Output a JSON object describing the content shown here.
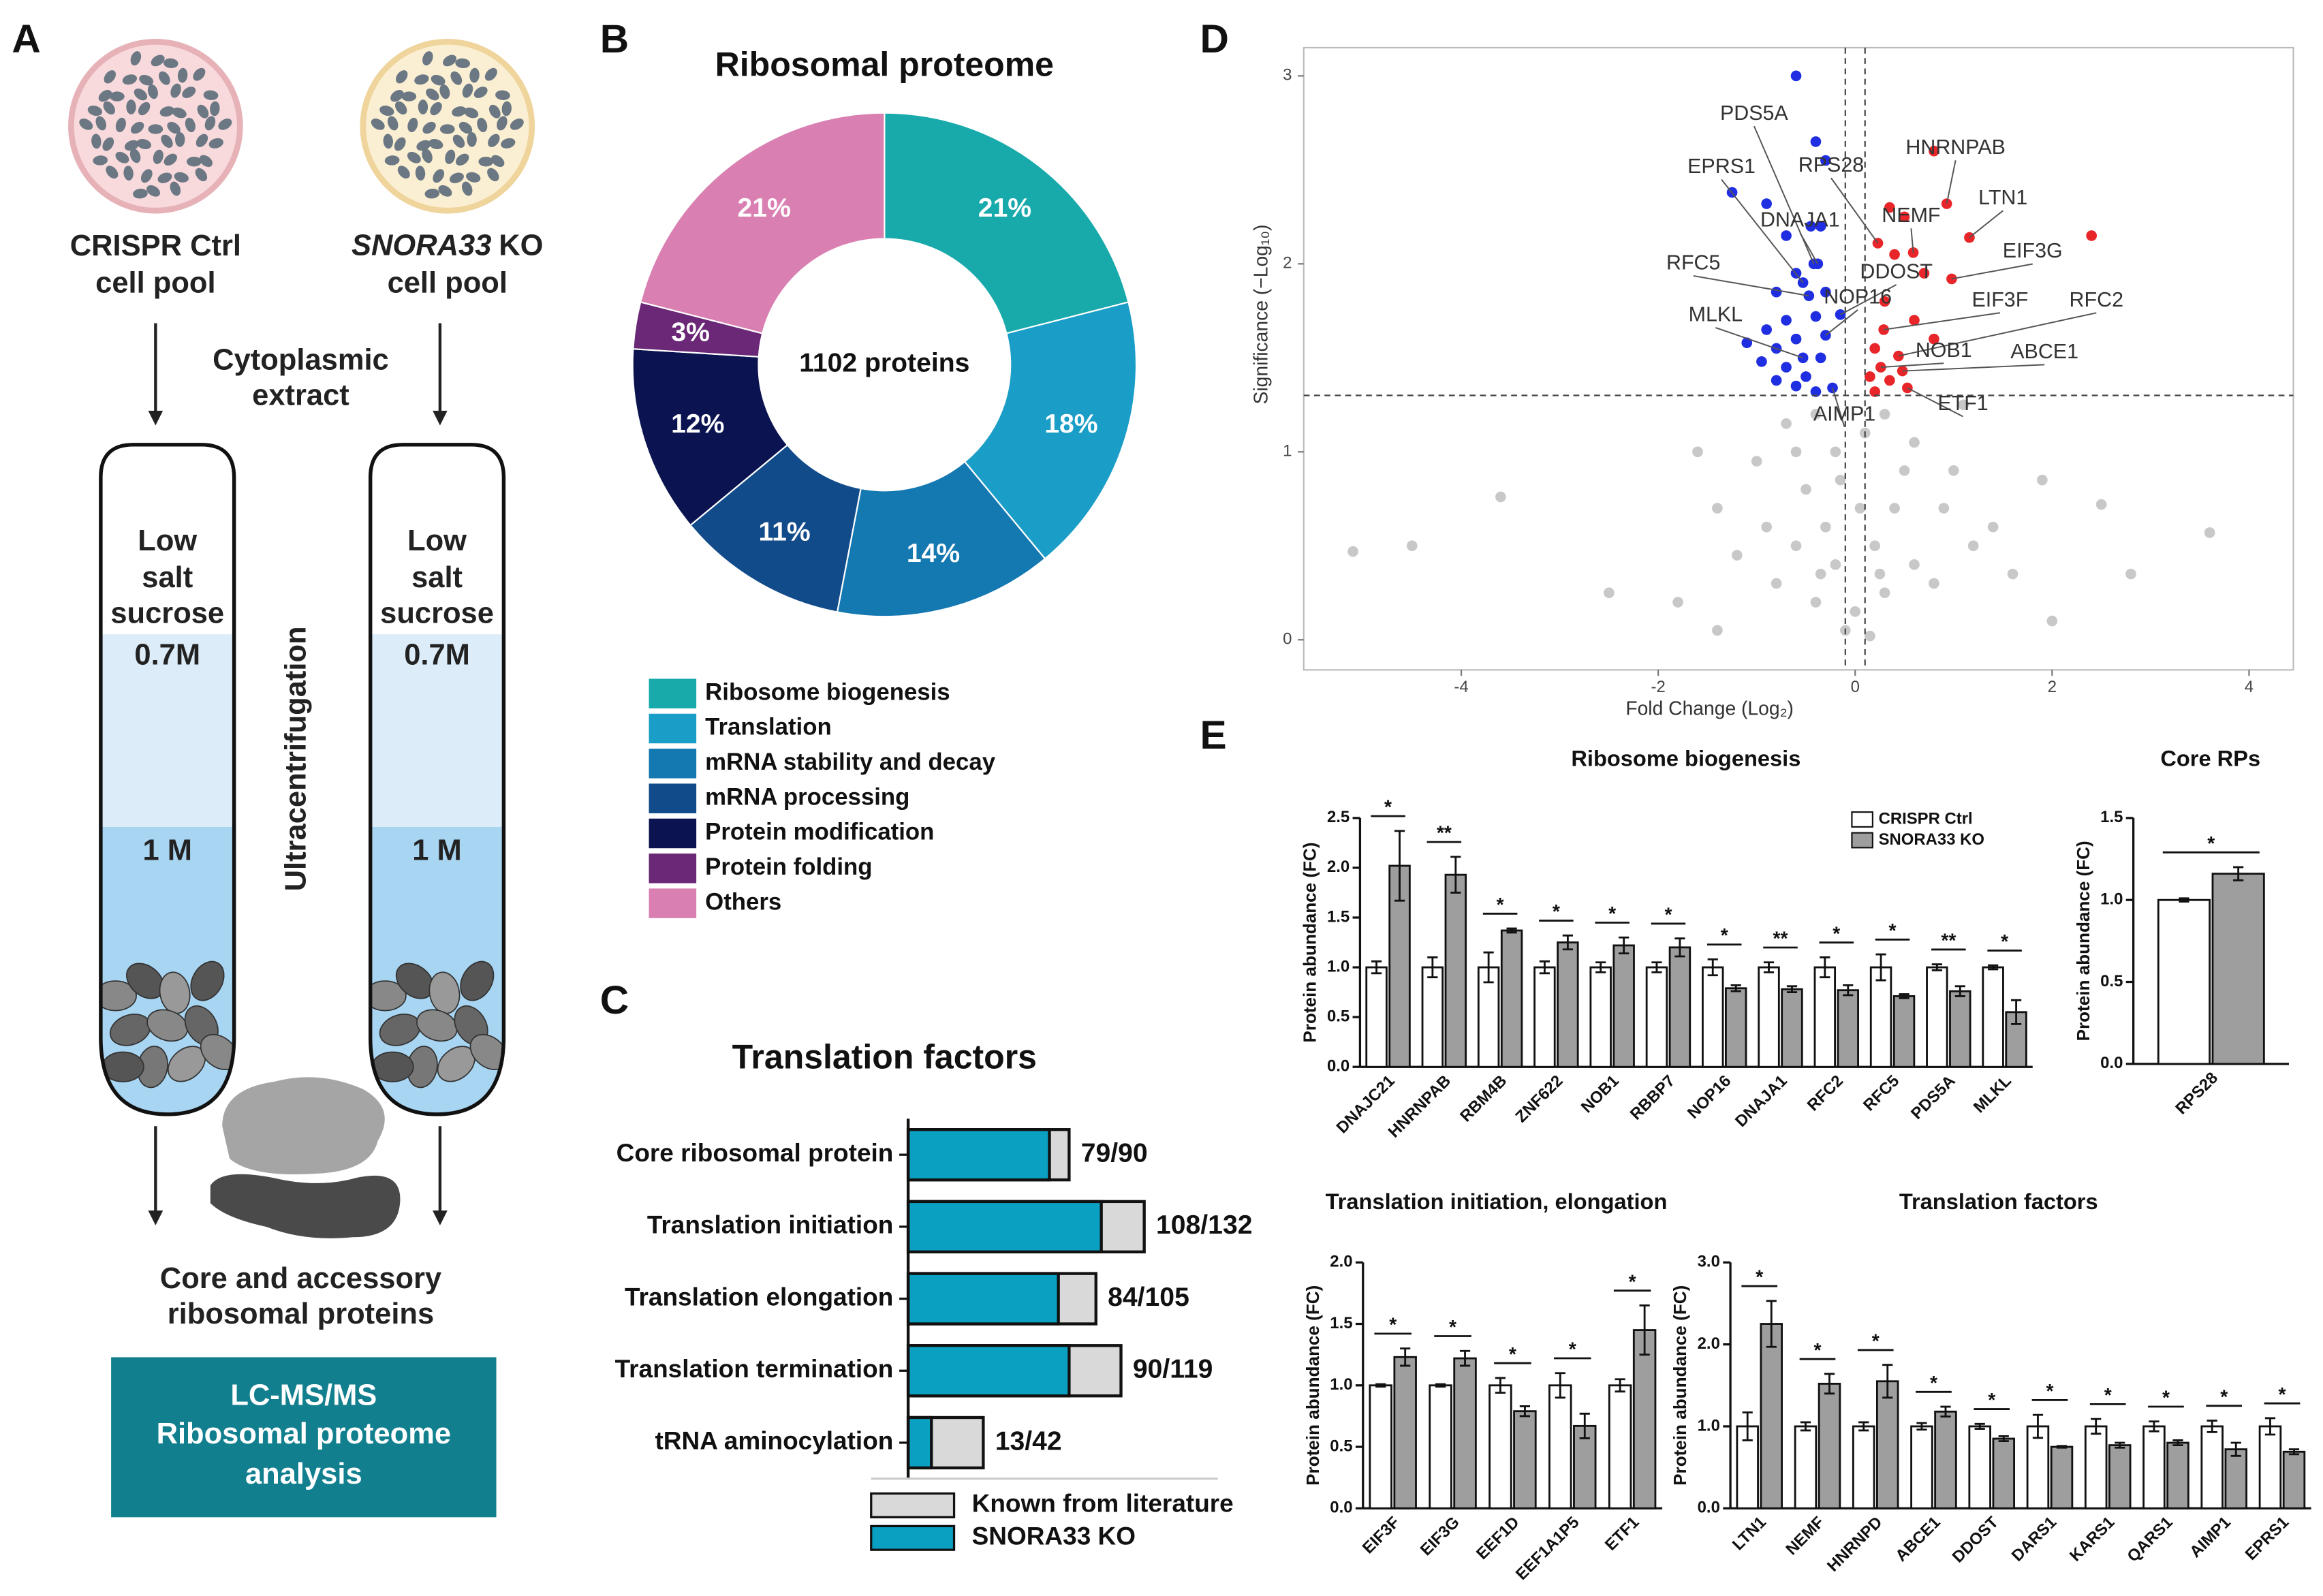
{
  "panels": [
    "A",
    "B",
    "C",
    "D",
    "E"
  ],
  "diagram": {
    "left_dish": [
      "CRISPR Ctrl",
      "cell pool"
    ],
    "right_dish": {
      "gene": "SNORA33",
      "suffix": "KO",
      "line2": "cell pool"
    },
    "step": [
      "Cytoplasmic",
      "extract"
    ],
    "tube_layers": [
      "Low",
      "salt",
      "sucrose"
    ],
    "fraction_1": "0.7M",
    "fraction_2": "1 M",
    "centrifuge": "Ultracentrifugation",
    "result": [
      "Core and accessory",
      "ribosomal proteins"
    ],
    "analysis": [
      "LC-MS/MS",
      "Ribosomal proteome",
      "analysis"
    ]
  },
  "chart_data": [
    {
      "type": "pie",
      "title": "Ribosomal proteome",
      "center_label": "1102 proteins",
      "categories": [
        "Ribosome biogenesis",
        "Translation",
        "mRNA stability and decay",
        "mRNA processing",
        "Protein modification",
        "Protein folding",
        "Others"
      ],
      "values": [
        21,
        18,
        14,
        11,
        12,
        3,
        21
      ],
      "value_labels": [
        "21%",
        "18%",
        "14%",
        "11%",
        "12%",
        "3%",
        "21%"
      ],
      "colors": [
        "#18a9ab",
        "#1a9dc6",
        "#1478b1",
        "#114b8a",
        "#0b1450",
        "#6a2876",
        "#d97fb2"
      ]
    },
    {
      "type": "bar",
      "orientation": "horizontal",
      "title": "Translation factors",
      "categories": [
        "Core ribosomal protein",
        "Translation initiation",
        "Translation elongation",
        "Translation termination",
        "tRNA aminocylation"
      ],
      "series": [
        {
          "name": "Known from literature",
          "color": "#d9d9d9",
          "values": [
            90,
            132,
            105,
            119,
            42
          ]
        },
        {
          "name": "SNORA33 KO",
          "color": "#0aa0c1",
          "values": [
            79,
            108,
            84,
            90,
            13
          ]
        }
      ],
      "value_labels": [
        "79/90",
        "108/132",
        "84/105",
        "90/119",
        "13/42"
      ],
      "xlim": [
        0,
        140
      ]
    },
    {
      "type": "scatter",
      "xlabel": "Fold Change (Log₂)",
      "ylabel": "Significance (−Log₁₀)",
      "xlim": [
        -5.6,
        4.45
      ],
      "ylim": [
        -0.16,
        3.15
      ],
      "xticks": [
        -4,
        -2,
        0,
        2,
        4
      ],
      "yticks": [
        0,
        1,
        2,
        3
      ],
      "vlines": [
        -0.1,
        0.1
      ],
      "hline": 1.3,
      "series": [
        {
          "color": "#c8c8c8",
          "x": [
            -5.1,
            -4.5,
            -3.6,
            3.6,
            2.5,
            1.9,
            -1.4,
            -1.0,
            -0.7,
            -0.4,
            -0.2,
            0.1,
            0.3,
            0.6,
            1.0,
            1.4,
            -0.5,
            -0.3,
            -0.6,
            -0.2,
            0.2,
            0.4,
            0.6,
            0.8,
            -0.8,
            -0.4,
            0.0,
            0.3,
            -0.1,
            0.15,
            -1.4,
            2.0,
            -1.8,
            1.6,
            -1.2,
            1.2,
            -0.9,
            0.9,
            -0.15,
            0.5,
            -0.6,
            0.25,
            -0.35,
            1.1,
            -1.6,
            2.8,
            -2.5,
            0.05
          ],
          "y": [
            0.47,
            0.5,
            0.76,
            0.57,
            0.72,
            0.85,
            0.7,
            0.95,
            1.15,
            1.2,
            1.0,
            1.1,
            1.2,
            1.05,
            0.9,
            0.6,
            0.8,
            0.6,
            0.5,
            0.4,
            0.5,
            0.7,
            0.4,
            0.3,
            0.3,
            0.2,
            0.15,
            0.25,
            0.05,
            0.02,
            0.05,
            0.1,
            0.2,
            0.35,
            0.45,
            0.5,
            0.6,
            0.7,
            0.85,
            0.9,
            1.0,
            0.35,
            0.35,
            1.25,
            1.0,
            0.35,
            0.25,
            0.7
          ]
        },
        {
          "color": "#1f2ee0",
          "x": [
            -0.6,
            -0.4,
            -0.3,
            -1.25,
            -0.9,
            -0.45,
            -0.7,
            -0.35,
            -0.42,
            -0.53,
            -0.38,
            -0.47,
            -0.6,
            -0.8,
            -0.3,
            -0.53,
            -0.7,
            -0.9,
            -0.4,
            -0.6,
            -0.8,
            -0.35,
            -0.5,
            -0.7,
            -0.3,
            -0.95,
            -0.6,
            -0.4,
            -0.8,
            -0.23,
            -0.15,
            -1.1
          ],
          "y": [
            3.0,
            2.65,
            2.55,
            2.38,
            2.32,
            2.2,
            2.15,
            2.2,
            2.0,
            1.9,
            2.0,
            1.83,
            1.95,
            1.85,
            1.85,
            1.5,
            1.7,
            1.65,
            1.72,
            1.6,
            1.55,
            1.5,
            1.4,
            1.45,
            1.62,
            1.48,
            1.35,
            1.32,
            1.38,
            1.34,
            1.73,
            1.58
          ]
        },
        {
          "color": "#e8262a",
          "x": [
            0.8,
            0.93,
            0.59,
            1.16,
            0.23,
            0.35,
            0.5,
            2.4,
            0.98,
            0.4,
            0.7,
            0.29,
            0.44,
            0.26,
            0.48,
            0.53,
            0.2,
            0.3,
            0.6,
            0.15,
            0.35,
            0.8,
            0.2
          ],
          "y": [
            2.6,
            2.32,
            2.06,
            2.14,
            2.11,
            2.3,
            2.25,
            2.15,
            1.92,
            2.05,
            1.95,
            1.65,
            1.51,
            1.45,
            1.43,
            1.34,
            1.55,
            1.8,
            1.7,
            1.4,
            1.38,
            1.6,
            1.32
          ]
        }
      ],
      "annotations": [
        {
          "text": "PDS5A",
          "x": -0.42,
          "y": 2.0
        },
        {
          "text": "EPRS1",
          "x": -0.53,
          "y": 1.9
        },
        {
          "text": "RPS28",
          "x": 0.23,
          "y": 2.11
        },
        {
          "text": "HNRNPAB",
          "x": 0.93,
          "y": 2.32
        },
        {
          "text": "NEMF",
          "x": 0.59,
          "y": 2.06
        },
        {
          "text": "LTN1",
          "x": 1.16,
          "y": 2.14
        },
        {
          "text": "DNAJA1",
          "x": -0.38,
          "y": 2.0
        },
        {
          "text": "EIF3G",
          "x": 0.98,
          "y": 1.92
        },
        {
          "text": "RFC5",
          "x": -0.47,
          "y": 1.83
        },
        {
          "text": "DDOST",
          "x": -0.15,
          "y": 1.73
        },
        {
          "text": "NOP16",
          "x": -0.3,
          "y": 1.62
        },
        {
          "text": "EIF3F",
          "x": 0.29,
          "y": 1.65
        },
        {
          "text": "RFC2",
          "x": 0.44,
          "y": 1.51
        },
        {
          "text": "MLKL",
          "x": -0.53,
          "y": 1.5
        },
        {
          "text": "NOB1",
          "x": 0.26,
          "y": 1.45
        },
        {
          "text": "ABCE1",
          "x": 0.48,
          "y": 1.43
        },
        {
          "text": "ETF1",
          "x": 0.53,
          "y": 1.34
        },
        {
          "text": "AIMP1",
          "x": -0.23,
          "y": 1.34
        }
      ]
    },
    {
      "type": "bar",
      "title": "Ribosome biogenesis",
      "ylabel": "Protein abundance (FC)",
      "categories": [
        "DNAJC21",
        "HNRNPAB",
        "RBM4B",
        "ZNF622",
        "NOB1",
        "RBBP7",
        "NOP16",
        "DNAJA1",
        "RFC2",
        "RFC5",
        "PDS5A",
        "MLKL"
      ],
      "ylim": [
        0,
        2.5
      ],
      "yticks": [
        {
          "value": 0,
          "label": "0.0"
        },
        0.5,
        {
          "value": 1,
          "label": "1.0"
        },
        1.5,
        {
          "value": 2,
          "label": "2.0"
        },
        2.5
      ],
      "series": [
        {
          "name": "CRISPR Ctrl",
          "color": "#ffffff",
          "values": [
            1,
            1,
            1,
            1,
            1,
            1,
            1,
            1,
            1,
            1,
            1,
            1
          ],
          "errors": [
            0.06,
            0.1,
            0.15,
            0.06,
            0.05,
            0.05,
            0.08,
            0.05,
            0.1,
            0.13,
            0.03,
            0.02
          ]
        },
        {
          "name": "SNORA33 KO",
          "color": "#9e9e9e",
          "values": [
            2.02,
            1.93,
            1.37,
            1.25,
            1.22,
            1.2,
            0.79,
            0.78,
            0.77,
            0.71,
            0.76,
            0.55
          ],
          "errors": [
            0.35,
            0.18,
            0.02,
            0.07,
            0.08,
            0.09,
            0.03,
            0.03,
            0.05,
            0.02,
            0.05,
            0.12
          ]
        }
      ],
      "significance": [
        "*",
        "**",
        "*",
        "*",
        "*",
        "*",
        "*",
        "**",
        "*",
        "*",
        "**",
        "*"
      ]
    },
    {
      "type": "bar",
      "title": "Core RPs",
      "ylabel": "Protein abundance (FC)",
      "categories": [
        "RPS28"
      ],
      "ylim": [
        0,
        1.5
      ],
      "yticks": [
        {
          "value": 0,
          "label": "0.0"
        },
        0.5,
        {
          "value": 1,
          "label": "1.0"
        },
        1.5
      ],
      "series": [
        {
          "color": "#ffffff",
          "values": [
            1
          ],
          "errors": [
            0.01
          ]
        },
        {
          "color": "#9e9e9e",
          "values": [
            1.16
          ],
          "errors": [
            0.04
          ]
        }
      ],
      "significance": [
        "*"
      ]
    },
    {
      "type": "bar",
      "title": "Translation initiation, elongation",
      "ylabel": "Protein abundance (FC)",
      "categories": [
        "EIF3F",
        "EIF3G",
        "EEF1D",
        "EEF1A1P5",
        "ETF1"
      ],
      "ylim": [
        0,
        2
      ],
      "yticks": [
        {
          "value": 0,
          "label": "0.0"
        },
        0.5,
        {
          "value": 1,
          "label": "1.0"
        },
        1.5,
        {
          "value": 2,
          "label": "2.0"
        }
      ],
      "series": [
        {
          "color": "#ffffff",
          "values": [
            1,
            1,
            1,
            1,
            1
          ],
          "errors": [
            0.01,
            0.01,
            0.06,
            0.1,
            0.05
          ]
        },
        {
          "color": "#9e9e9e",
          "values": [
            1.23,
            1.22,
            0.79,
            0.67,
            1.45
          ],
          "errors": [
            0.07,
            0.06,
            0.04,
            0.1,
            0.2
          ]
        }
      ],
      "significance": [
        "*",
        "*",
        "*",
        "*",
        "*"
      ]
    },
    {
      "type": "bar",
      "title": "Translation factors",
      "ylabel": "Protein abundance (FC)",
      "categories": [
        "LTN1",
        "NEMF",
        "HNRNPD",
        "ABCE1",
        "DDOST",
        "DARS1",
        "KARS1",
        "QARS1",
        "AIMP1",
        "EPRS1"
      ],
      "ylim": [
        0,
        3
      ],
      "yticks": [
        {
          "value": 0,
          "label": "0.0"
        },
        {
          "value": 1,
          "label": "1.0"
        },
        {
          "value": 2,
          "label": "2.0"
        },
        {
          "value": 3,
          "label": "3.0"
        }
      ],
      "series": [
        {
          "color": "#ffffff",
          "values": [
            1,
            1,
            1,
            1,
            1,
            1,
            1,
            1,
            1,
            1
          ],
          "errors": [
            0.17,
            0.05,
            0.05,
            0.04,
            0.03,
            0.14,
            0.09,
            0.06,
            0.07,
            0.1
          ]
        },
        {
          "color": "#9e9e9e",
          "values": [
            2.25,
            1.52,
            1.55,
            1.18,
            0.85,
            0.75,
            0.77,
            0.8,
            0.72,
            0.69
          ],
          "errors": [
            0.28,
            0.12,
            0.2,
            0.06,
            0.03,
            0.01,
            0.03,
            0.03,
            0.08,
            0.03
          ]
        }
      ],
      "significance": [
        "*",
        "*",
        "*",
        "*",
        "*",
        "*",
        "*",
        "*",
        "*",
        "*"
      ]
    }
  ]
}
